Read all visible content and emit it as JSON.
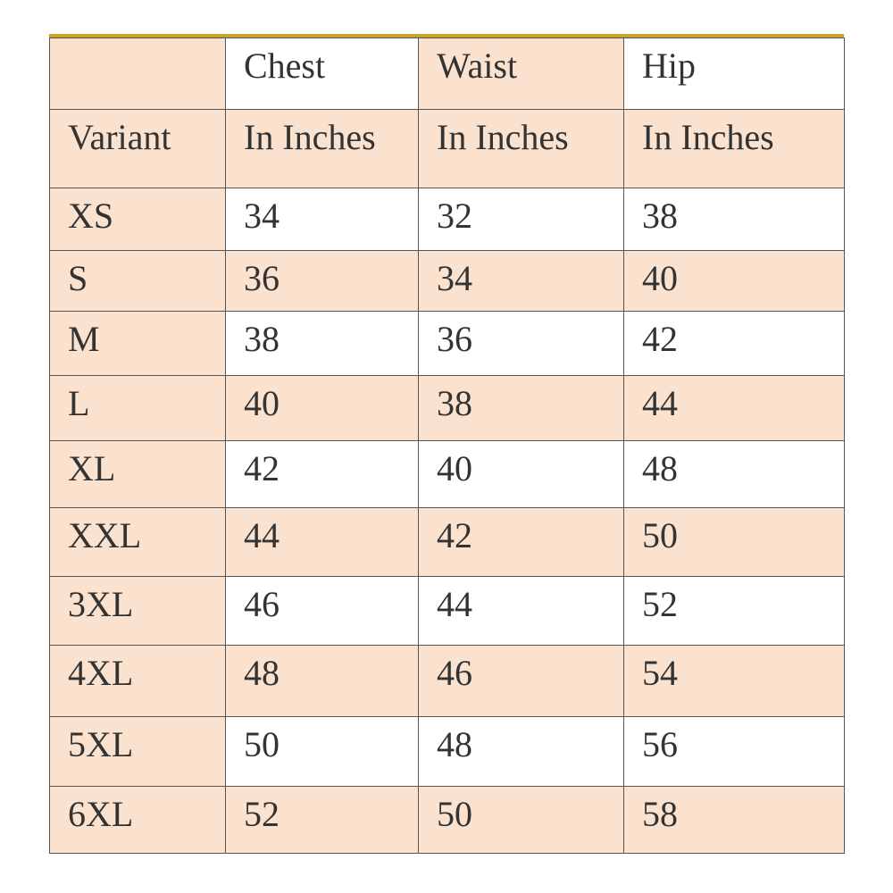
{
  "table": {
    "row_header": "Variant",
    "columns": [
      {
        "name": "Chest",
        "unit": "In Inches"
      },
      {
        "name": "Waist",
        "unit": "In Inches"
      },
      {
        "name": "Hip",
        "unit": "In Inches"
      }
    ],
    "rows": [
      {
        "variant": "XS",
        "values": [
          34,
          32,
          38
        ]
      },
      {
        "variant": "S",
        "values": [
          36,
          34,
          40
        ]
      },
      {
        "variant": "M",
        "values": [
          38,
          36,
          42
        ]
      },
      {
        "variant": "L",
        "values": [
          40,
          38,
          44
        ]
      },
      {
        "variant": "XL",
        "values": [
          42,
          40,
          48
        ]
      },
      {
        "variant": "XXL",
        "values": [
          44,
          42,
          50
        ]
      },
      {
        "variant": "3XL",
        "values": [
          46,
          44,
          52
        ]
      },
      {
        "variant": "4XL",
        "values": [
          48,
          46,
          54
        ]
      },
      {
        "variant": "5XL",
        "values": [
          50,
          48,
          56
        ]
      },
      {
        "variant": "6XL",
        "values": [
          52,
          50,
          58
        ]
      }
    ]
  }
}
